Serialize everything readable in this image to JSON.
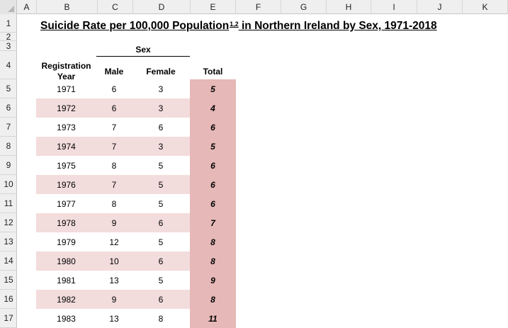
{
  "columns": [
    "A",
    "B",
    "C",
    "D",
    "E",
    "F",
    "G",
    "H",
    "I",
    "J",
    "K"
  ],
  "rows": [
    "1",
    "2",
    "3",
    "4",
    "5",
    "6",
    "7",
    "8",
    "9",
    "10",
    "11",
    "12",
    "13",
    "14",
    "15",
    "16",
    "17"
  ],
  "title": {
    "main": "Suicide Rate per 100,000 Population",
    "superscript": "1,2",
    "suffix": " in Northern Ireland by Sex, 1971-2018"
  },
  "headers": {
    "sex": "Sex",
    "registration_year_line1": "Registration",
    "registration_year_line2": "Year",
    "male": "Male",
    "female": "Female",
    "total": "Total"
  },
  "data": [
    {
      "year": "1971",
      "male": "6",
      "female": "3",
      "total": "5"
    },
    {
      "year": "1972",
      "male": "6",
      "female": "3",
      "total": "4"
    },
    {
      "year": "1973",
      "male": "7",
      "female": "6",
      "total": "6"
    },
    {
      "year": "1974",
      "male": "7",
      "female": "3",
      "total": "5"
    },
    {
      "year": "1975",
      "male": "8",
      "female": "5",
      "total": "6"
    },
    {
      "year": "1976",
      "male": "7",
      "female": "5",
      "total": "6"
    },
    {
      "year": "1977",
      "male": "8",
      "female": "5",
      "total": "6"
    },
    {
      "year": "1978",
      "male": "9",
      "female": "6",
      "total": "7"
    },
    {
      "year": "1979",
      "male": "12",
      "female": "5",
      "total": "8"
    },
    {
      "year": "1980",
      "male": "10",
      "female": "6",
      "total": "8"
    },
    {
      "year": "1981",
      "male": "13",
      "female": "5",
      "total": "9"
    },
    {
      "year": "1982",
      "male": "9",
      "female": "6",
      "total": "8"
    },
    {
      "year": "1983",
      "male": "13",
      "female": "8",
      "total": "11"
    }
  ],
  "colors": {
    "band": "#f3dcdc",
    "total_fill": "#e6b8b7",
    "header_bg": "#efefef"
  }
}
